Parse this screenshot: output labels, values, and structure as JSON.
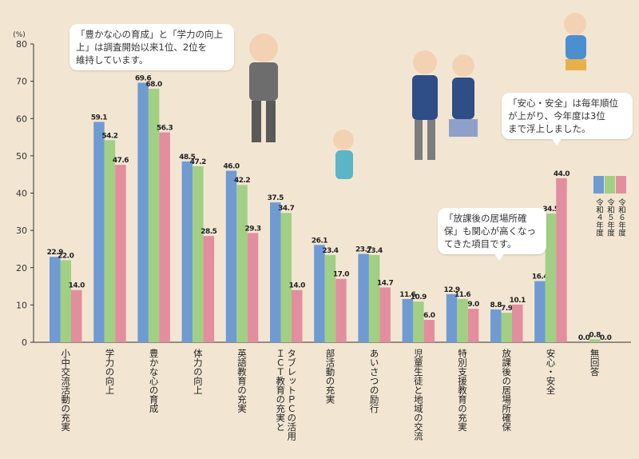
{
  "chart_data": {
    "type": "bar",
    "unit_label": "(%)",
    "ylim": [
      0,
      80
    ],
    "yticks": [
      0,
      10,
      20,
      30,
      40,
      50,
      60,
      70,
      80
    ],
    "categories": [
      "小中交流活動の充実",
      "学力の向上",
      "豊かな心の育成",
      "体力の向上",
      "英語教育の充実",
      "ＩＣＴ教育の充実とタブレットＰＣの活用",
      "部活動の充実",
      "あいさつの励行",
      "児童生徒と地域の交流",
      "特別支援教育の充実",
      "放課後の居場所確保",
      "安心・安全",
      "無回答"
    ],
    "category_lines": [
      [
        "小中交流活動の充実"
      ],
      [
        "学力の向上"
      ],
      [
        "豊かな心の育成"
      ],
      [
        "体力の向上"
      ],
      [
        "英語教育の充実"
      ],
      [
        "ＩＣＴ教育の充実と",
        "タブレットＰＣの活用"
      ],
      [
        "部活動の充実"
      ],
      [
        "あいさつの励行"
      ],
      [
        "児童生徒と地域の交流"
      ],
      [
        "特別支援教育の充実"
      ],
      [
        "放課後の居場所確保"
      ],
      [
        "安心・安全"
      ],
      [
        "無回答"
      ]
    ],
    "series": [
      {
        "name": "令和４年度",
        "color": "#6f9bd2",
        "values": [
          22.9,
          59.1,
          69.6,
          48.5,
          46.0,
          37.5,
          26.1,
          23.7,
          11.6,
          12.9,
          8.8,
          16.4,
          0.0
        ]
      },
      {
        "name": "令和５年度",
        "color": "#a1cf84",
        "values": [
          22.0,
          54.2,
          68.0,
          47.2,
          42.2,
          34.7,
          23.4,
          23.4,
          10.9,
          11.6,
          7.9,
          34.5,
          0.8
        ]
      },
      {
        "name": "令和６年度",
        "color": "#e38e9e",
        "values": [
          14.0,
          47.6,
          56.3,
          28.5,
          29.3,
          14.0,
          17.0,
          14.7,
          6.0,
          9.0,
          10.1,
          44.0,
          0.0
        ]
      }
    ],
    "grid": false,
    "legend_position": "right"
  },
  "annotations": {
    "bubble1": [
      "「豊かな心の育成」と「学力の向上",
      "上」は調査開始以来1位、2位を",
      "維持しています。"
    ],
    "bubble2": [
      "「安心・安全」は毎年順位",
      "が上がり、今年度は3位",
      "まで浮上しました。"
    ],
    "bubble3": [
      "「放課後の居場所確",
      "保」も関心が高くなっ",
      "てきた項目です。"
    ]
  }
}
